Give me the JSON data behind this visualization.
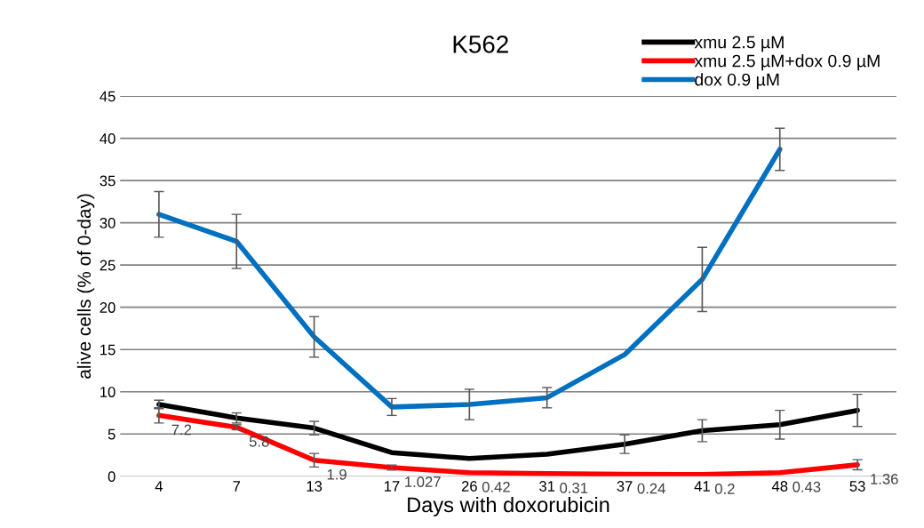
{
  "chart_data": {
    "type": "line",
    "title": "K562",
    "xlabel": "Days with doxorubicin",
    "ylabel": "alive cells (% of 0-day)",
    "categories": [
      "4",
      "7",
      "13",
      "17",
      "26",
      "31",
      "37",
      "41",
      "48",
      "53"
    ],
    "series": [
      {
        "name": "xmu 2.5 µM",
        "color": "#000000",
        "values": [
          8.5,
          6.9,
          5.7,
          2.8,
          2.1,
          2.6,
          3.8,
          5.4,
          6.1,
          7.8
        ],
        "errors": [
          0.5,
          0.6,
          0.8,
          null,
          null,
          null,
          1.1,
          1.3,
          1.7,
          1.9
        ]
      },
      {
        "name": "xmu 2.5 µM+dox 0.9 µM",
        "color": "#ff0000",
        "values": [
          7.2,
          5.8,
          1.9,
          1.027,
          0.42,
          0.31,
          0.24,
          0.2,
          0.43,
          1.36
        ],
        "errors": [
          0.9,
          0.3,
          0.8,
          0.3,
          null,
          null,
          null,
          null,
          null,
          0.6
        ],
        "value_labels": [
          "7.2",
          "5.8",
          "1.9",
          "1.027",
          "0.42",
          "0.31",
          "0.24",
          "0.2",
          "0.43",
          "1.36"
        ]
      },
      {
        "name": "dox 0.9 µM",
        "color": "#0070c0",
        "values": [
          31,
          27.8,
          16.5,
          8.2,
          8.5,
          9.3,
          14.4,
          23.3,
          38.7,
          null
        ],
        "errors": [
          2.7,
          3.2,
          2.4,
          1.0,
          1.8,
          1.2,
          null,
          3.8,
          2.5,
          null
        ]
      }
    ],
    "ylim": [
      0,
      45
    ],
    "yticks": [
      0,
      5,
      10,
      15,
      20,
      25,
      30,
      35,
      40,
      45
    ],
    "grid": "y",
    "legend": "top right",
    "marker": "none",
    "line_style": "solid"
  }
}
